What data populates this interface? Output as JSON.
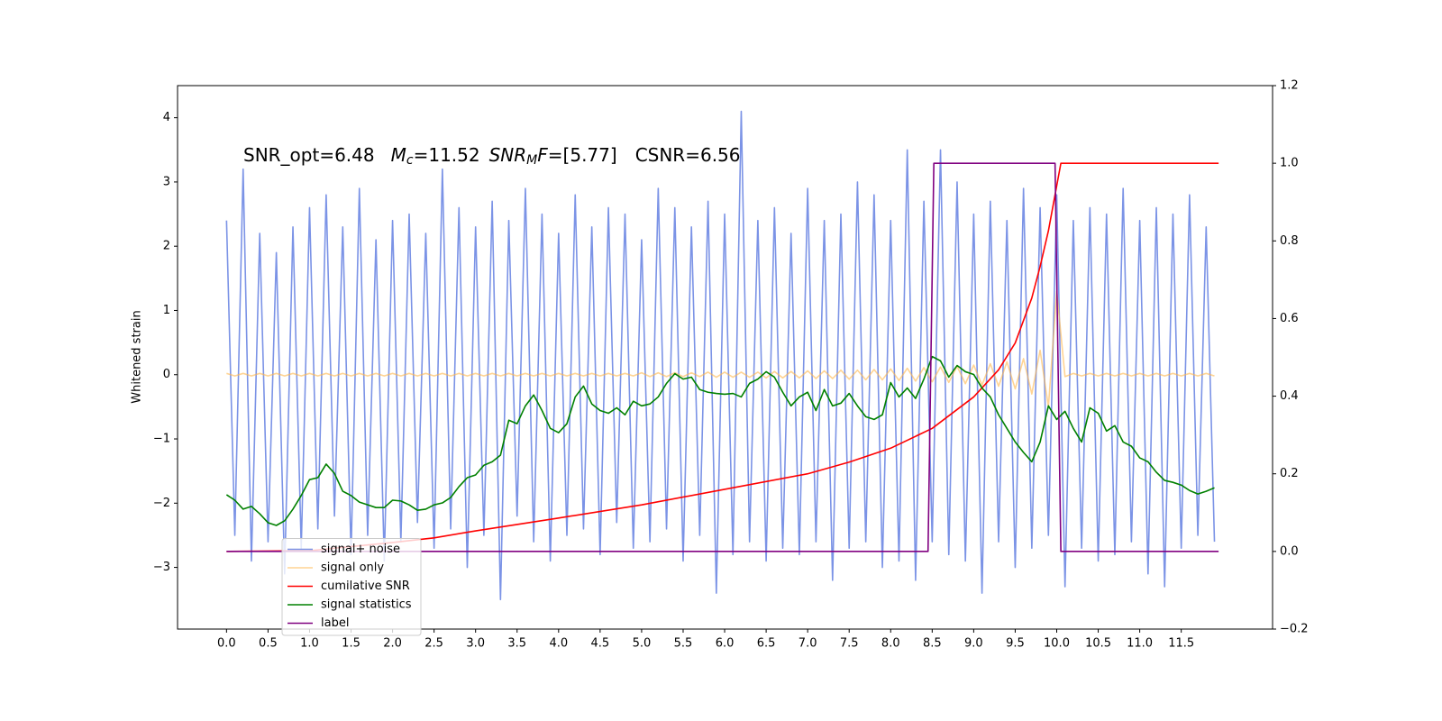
{
  "chart_data": {
    "type": "line",
    "annotation": [
      "SNR_opt=6.48",
      "M",
      "c",
      "=11.52",
      "SNR",
      "M",
      "F",
      "=[5.77]",
      "CSNR=6.56"
    ],
    "ylabel": "Whitened strain",
    "xlim": [
      -0.59,
      12.6
    ],
    "ylim": [
      -3.96,
      4.5
    ],
    "y2lim": [
      -0.2,
      1.2
    ],
    "xticks": [
      {
        "value": 0,
        "label": "0.0"
      },
      0.5,
      {
        "value": 1,
        "label": "1.0"
      },
      1.5,
      {
        "value": 2,
        "label": "2.0"
      },
      2.5,
      {
        "value": 3,
        "label": "3.0"
      },
      3.5,
      {
        "value": 4,
        "label": "4.0"
      },
      4.5,
      {
        "value": 5,
        "label": "5.0"
      },
      5.5,
      {
        "value": 6,
        "label": "6.0"
      },
      6.5,
      {
        "value": 7,
        "label": "7.0"
      },
      7.5,
      {
        "value": 8,
        "label": "8.0"
      },
      8.5,
      {
        "value": 9,
        "label": "9.0"
      },
      9.5,
      {
        "value": 10,
        "label": "10.0"
      },
      10.5,
      {
        "value": 11,
        "label": "11.0"
      },
      11.5
    ],
    "yticks": [
      {
        "value": -3,
        "label": "−3"
      },
      {
        "value": -2,
        "label": "−2"
      },
      {
        "value": -1,
        "label": "−1"
      },
      0,
      1,
      2,
      3,
      4
    ],
    "y2ticks": [
      {
        "value": -0.2,
        "label": "−0.2"
      },
      {
        "value": 0,
        "label": "0.0"
      },
      0.2,
      0.4,
      0.6,
      0.8,
      {
        "value": 1,
        "label": "1.0"
      },
      1.2
    ],
    "legend": "lower left",
    "x": [
      0,
      0.1,
      0.2,
      0.3,
      0.4,
      0.5,
      0.6,
      0.7,
      0.8,
      0.9,
      1,
      1.1,
      1.2,
      1.3,
      1.4,
      1.5,
      1.6,
      1.7,
      1.8,
      1.9,
      2,
      2.1,
      2.2,
      2.3,
      2.4,
      2.5,
      2.6,
      2.7,
      2.8,
      2.9,
      3,
      3.1,
      3.2,
      3.3,
      3.4,
      3.5,
      3.6,
      3.7,
      3.8,
      3.9,
      4,
      4.1,
      4.2,
      4.3,
      4.4,
      4.5,
      4.6,
      4.7,
      4.8,
      4.9,
      5,
      5.1,
      5.2,
      5.3,
      5.4,
      5.5,
      5.6,
      5.7,
      5.8,
      5.9,
      6,
      6.1,
      6.2,
      6.3,
      6.4,
      6.5,
      6.6,
      6.7,
      6.8,
      6.9,
      7,
      7.1,
      7.2,
      7.3,
      7.4,
      7.5,
      7.6,
      7.7,
      7.8,
      7.9,
      8,
      8.1,
      8.2,
      8.3,
      8.4,
      8.5,
      8.6,
      8.7,
      8.8,
      8.9,
      9,
      9.1,
      9.2,
      9.3,
      9.4,
      9.5,
      9.6,
      9.7,
      9.8,
      9.9,
      10,
      10.1,
      10.2,
      10.3,
      10.4,
      10.5,
      10.6,
      10.7,
      10.8,
      10.9,
      11,
      11.1,
      11.2,
      11.3,
      11.4,
      11.5,
      11.6,
      11.7,
      11.8,
      11.9
    ],
    "series": [
      {
        "name": "signal+ noise",
        "color": "#7b93e6",
        "values": [
          2.4,
          -2.5,
          3.2,
          -2.9,
          2.2,
          -2.6,
          1.9,
          -3.1,
          2.3,
          -2.7,
          2.6,
          -2.4,
          2.8,
          -2.2,
          2.3,
          -2.8,
          2.9,
          -2.5,
          2.1,
          -2.9,
          2.4,
          -2.6,
          2.5,
          -2.3,
          2.2,
          -2.7,
          3.2,
          -2.4,
          2.6,
          -3.0,
          2.3,
          -2.5,
          2.7,
          -3.5,
          2.4,
          -2.2,
          2.9,
          -2.6,
          2.5,
          -2.9,
          2.2,
          -2.5,
          2.8,
          -2.4,
          2.3,
          -2.8,
          2.6,
          -2.3,
          2.5,
          -2.7,
          2.1,
          -2.6,
          2.9,
          -2.4,
          2.6,
          -2.9,
          2.3,
          -2.5,
          2.7,
          -3.4,
          2.5,
          -2.8,
          4.1,
          -2.6,
          2.4,
          -2.9,
          2.6,
          -2.7,
          2.2,
          -2.8,
          2.9,
          -2.6,
          2.4,
          -3.2,
          2.5,
          -2.7,
          3.0,
          -2.6,
          2.8,
          -3.0,
          2.4,
          -2.9,
          3.5,
          -3.2,
          2.7,
          -2.6,
          3.5,
          -2.8,
          3.0,
          -2.9,
          2.5,
          -3.4,
          2.7,
          -2.6,
          2.4,
          -3.0,
          2.9,
          -2.7,
          2.6,
          -2.5,
          2.8,
          -3.3,
          2.4,
          -2.7,
          2.6,
          -2.9,
          2.5,
          -2.8,
          2.9,
          -2.6,
          2.4,
          -3.1,
          2.6,
          -3.3,
          2.5,
          -2.7,
          2.8,
          -2.5,
          2.3,
          -2.6
        ]
      },
      {
        "name": "signal only",
        "color": "#ffb84d",
        "alpha": 0.6,
        "values": [
          0.02,
          -0.02,
          0.02,
          -0.02,
          0.02,
          -0.02,
          0.02,
          -0.02,
          0.02,
          -0.02,
          0.02,
          -0.02,
          0.02,
          -0.02,
          0.02,
          -0.02,
          0.02,
          -0.02,
          0.02,
          -0.02,
          0.02,
          -0.02,
          0.02,
          -0.02,
          0.02,
          -0.02,
          0.02,
          -0.02,
          0.02,
          -0.02,
          0.02,
          -0.02,
          0.02,
          -0.02,
          0.02,
          -0.02,
          0.02,
          -0.02,
          0.02,
          -0.02,
          0.02,
          -0.02,
          0.02,
          -0.02,
          0.02,
          -0.02,
          0.02,
          -0.02,
          0.02,
          -0.02,
          0.03,
          -0.03,
          0.03,
          -0.03,
          0.03,
          -0.03,
          0.03,
          -0.03,
          0.04,
          -0.04,
          0.04,
          -0.04,
          0.04,
          -0.04,
          0.04,
          -0.05,
          0.05,
          -0.05,
          0.05,
          -0.05,
          0.06,
          -0.06,
          0.06,
          -0.06,
          0.07,
          -0.07,
          0.07,
          -0.08,
          0.08,
          -0.08,
          0.09,
          -0.09,
          0.1,
          -0.1,
          0.11,
          -0.11,
          0.12,
          -0.12,
          0.13,
          -0.14,
          0.15,
          -0.16,
          0.17,
          -0.18,
          0.2,
          -0.22,
          0.25,
          -0.3,
          0.38,
          -0.5,
          1.3,
          -0.03,
          0.02,
          -0.02,
          0.02,
          -0.02,
          0.02,
          -0.02,
          0.02,
          -0.02,
          0.02,
          -0.02,
          0.02,
          -0.02,
          0.02,
          -0.02,
          0.02,
          -0.02,
          0.02,
          -0.02
        ]
      },
      {
        "name": "cumilative SNR",
        "color": "#ff0000",
        "axis": "y2",
        "x": [
          0,
          1,
          2,
          2.5,
          3,
          4,
          5,
          6,
          7,
          7.5,
          8,
          8.5,
          9,
          9.3,
          9.5,
          9.7,
          9.8,
          9.9,
          10,
          10.05,
          11.95
        ],
        "values": [
          0,
          0.002,
          0.023,
          0.035,
          0.053,
          0.086,
          0.12,
          0.16,
          0.2,
          0.23,
          0.266,
          0.317,
          0.398,
          0.468,
          0.537,
          0.653,
          0.734,
          0.826,
          0.942,
          1,
          1
        ]
      },
      {
        "name": "signal statistics",
        "color": "#008000",
        "axis": "y2",
        "values": [
          0.146,
          0.132,
          0.109,
          0.116,
          0.097,
          0.074,
          0.067,
          0.079,
          0.109,
          0.144,
          0.185,
          0.19,
          0.225,
          0.201,
          0.155,
          0.144,
          0.127,
          0.12,
          0.113,
          0.113,
          0.132,
          0.13,
          0.12,
          0.106,
          0.109,
          0.12,
          0.125,
          0.139,
          0.167,
          0.19,
          0.197,
          0.222,
          0.231,
          0.248,
          0.338,
          0.329,
          0.375,
          0.403,
          0.363,
          0.317,
          0.306,
          0.329,
          0.398,
          0.426,
          0.38,
          0.363,
          0.356,
          0.37,
          0.352,
          0.387,
          0.375,
          0.38,
          0.398,
          0.433,
          0.458,
          0.444,
          0.449,
          0.417,
          0.41,
          0.407,
          0.405,
          0.407,
          0.398,
          0.433,
          0.444,
          0.463,
          0.449,
          0.41,
          0.375,
          0.398,
          0.41,
          0.363,
          0.417,
          0.375,
          0.382,
          0.407,
          0.375,
          0.347,
          0.34,
          0.352,
          0.435,
          0.398,
          0.421,
          0.394,
          0.444,
          0.502,
          0.491,
          0.449,
          0.479,
          0.463,
          0.456,
          0.421,
          0.398,
          0.352,
          0.317,
          0.282,
          0.255,
          0.231,
          0.282,
          0.375,
          0.34,
          0.361,
          0.317,
          0.282,
          0.37,
          0.356,
          0.31,
          0.324,
          0.282,
          0.271,
          0.241,
          0.231,
          0.204,
          0.183,
          0.178,
          0.171,
          0.157,
          0.148,
          0.155,
          0.164
        ]
      },
      {
        "name": "label",
        "color": "#800080",
        "axis": "y2",
        "x": [
          0,
          8.45,
          8.52,
          9.98,
          10.05,
          11.95
        ],
        "values": [
          0,
          0,
          1,
          1,
          0,
          0
        ]
      }
    ]
  }
}
